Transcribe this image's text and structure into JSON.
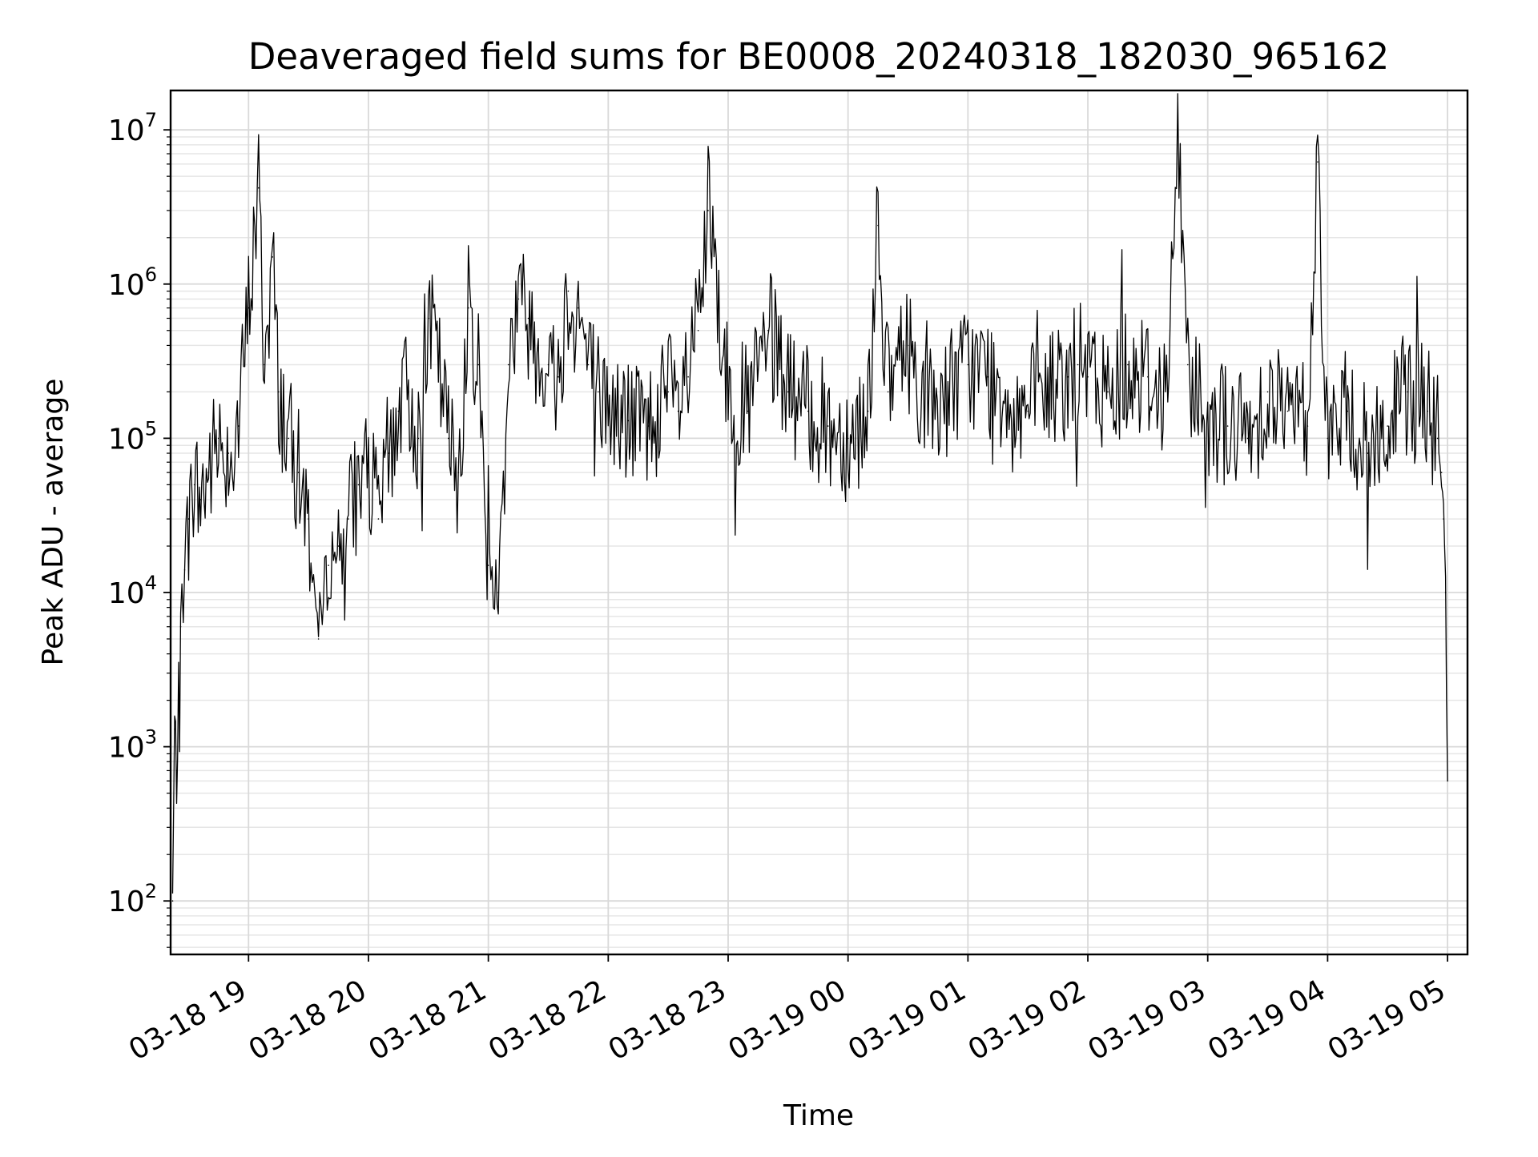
{
  "chart_data": {
    "type": "line",
    "title": "Deaveraged field sums for BE0008_20240318_182030_965162",
    "xlabel": "Time",
    "ylabel": "Peak ADU - average",
    "yscale": "log",
    "grid": true,
    "xlim": [
      "03-18 18:21",
      "03-19 05:10"
    ],
    "ylim": [
      45,
      18000000
    ],
    "x_ticks": [
      "03-18 19",
      "03-18 20",
      "03-18 21",
      "03-18 22",
      "03-18 23",
      "03-19 00",
      "03-19 01",
      "03-19 02",
      "03-19 03",
      "03-19 04",
      "03-19 05"
    ],
    "y_ticks": [
      {
        "base": "10",
        "exp": "2",
        "value": 100
      },
      {
        "base": "10",
        "exp": "3",
        "value": 1000
      },
      {
        "base": "10",
        "exp": "4",
        "value": 10000
      },
      {
        "base": "10",
        "exp": "5",
        "value": 100000
      },
      {
        "base": "10",
        "exp": "6",
        "value": 1000000
      },
      {
        "base": "10",
        "exp": "7",
        "value": 10000000
      }
    ],
    "series": [
      {
        "color": "#000000",
        "x": [
          "03-18 18:22",
          "03-18 18:23",
          "03-18 18:24",
          "03-18 18:25",
          "03-18 18:26",
          "03-18 18:28",
          "03-18 18:30",
          "03-18 18:33",
          "03-18 18:36",
          "03-18 18:40",
          "03-18 18:45",
          "03-18 18:50",
          "03-18 18:55",
          "03-18 19:00",
          "03-18 19:05",
          "03-18 19:08",
          "03-18 19:12",
          "03-18 19:15",
          "03-18 19:20",
          "03-18 19:25",
          "03-18 19:30",
          "03-18 19:35",
          "03-18 19:40",
          "03-18 19:45",
          "03-18 19:50",
          "03-18 19:55",
          "03-18 20:00",
          "03-18 20:05",
          "03-18 20:10",
          "03-18 20:15",
          "03-18 20:20",
          "03-18 20:25",
          "03-18 20:30",
          "03-18 20:35",
          "03-18 20:40",
          "03-18 20:45",
          "03-18 20:50",
          "03-18 20:55",
          "03-18 21:00",
          "03-18 21:05",
          "03-18 21:10",
          "03-18 21:15",
          "03-18 21:20",
          "03-18 21:25",
          "03-18 21:30",
          "03-18 21:35",
          "03-18 21:40",
          "03-18 21:45",
          "03-18 21:50",
          "03-18 21:55",
          "03-18 22:00",
          "03-18 22:10",
          "03-18 22:20",
          "03-18 22:30",
          "03-18 22:35",
          "03-18 22:40",
          "03-18 22:45",
          "03-18 22:50",
          "03-18 23:00",
          "03-18 23:10",
          "03-18 23:20",
          "03-18 23:30",
          "03-18 23:40",
          "03-18 23:50",
          "03-19 00:00",
          "03-19 00:10",
          "03-19 00:15",
          "03-19 00:20",
          "03-19 00:30",
          "03-19 00:40",
          "03-19 00:50",
          "03-19 01:00",
          "03-19 01:10",
          "03-19 01:20",
          "03-19 01:30",
          "03-19 01:40",
          "03-19 01:50",
          "03-19 01:55",
          "03-19 02:00",
          "03-19 02:10",
          "03-19 02:20",
          "03-19 02:30",
          "03-19 02:40",
          "03-19 02:45",
          "03-19 02:50",
          "03-19 03:00",
          "03-19 03:10",
          "03-19 03:20",
          "03-19 03:30",
          "03-19 03:40",
          "03-19 03:50",
          "03-19 03:55",
          "03-19 04:00",
          "03-19 04:10",
          "03-19 04:20",
          "03-19 04:30",
          "03-19 04:40",
          "03-19 04:50",
          "03-19 04:55",
          "03-19 04:57",
          "03-19 04:58",
          "03-19 04:59",
          "03-19 05:00"
        ],
        "y": [
          100,
          1300,
          700,
          2000,
          6000,
          14000,
          30000,
          50000,
          40000,
          60000,
          100000,
          80000,
          120000,
          700000,
          4200000,
          300000,
          1500000,
          200000,
          100000,
          60000,
          30000,
          5000,
          15000,
          20000,
          30000,
          50000,
          60000,
          30000,
          80000,
          150000,
          200000,
          100000,
          600000,
          300000,
          100000,
          60000,
          700000,
          300000,
          15000,
          10000,
          300000,
          800000,
          600000,
          400000,
          300000,
          250000,
          900000,
          700000,
          300000,
          200000,
          150000,
          130000,
          120000,
          200000,
          150000,
          250000,
          500000,
          3000000,
          200000,
          150000,
          500000,
          200000,
          150000,
          120000,
          100000,
          150000,
          2400000,
          200000,
          400000,
          150000,
          200000,
          300000,
          250000,
          200000,
          150000,
          200000,
          250000,
          300000,
          250000,
          200000,
          300000,
          250000,
          200000,
          10000000,
          300000,
          150000,
          120000,
          100000,
          200000,
          150000,
          120000,
          6200000,
          100000,
          150000,
          80000,
          120000,
          200000,
          150000,
          100000,
          60000,
          30000,
          10000,
          600
        ]
      }
    ]
  }
}
